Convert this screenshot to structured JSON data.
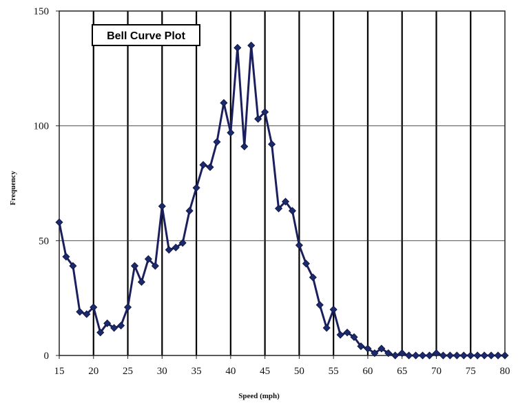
{
  "chart_data": {
    "type": "line",
    "title": "Bell Curve Plot",
    "xlabel": "Speed (mph)",
    "ylabel": "Frequency",
    "xlim": [
      15,
      80
    ],
    "ylim": [
      0,
      150
    ],
    "xticks": [
      15,
      20,
      25,
      30,
      35,
      40,
      45,
      50,
      55,
      60,
      65,
      70,
      75,
      80
    ],
    "yticks": [
      0,
      50,
      100,
      150
    ],
    "grid": true,
    "colors": {
      "line": "#1b1f5e",
      "marker": "#1b2a6b"
    },
    "series": [
      {
        "x": [
          15,
          16,
          17,
          18,
          19,
          20,
          21,
          22,
          23,
          24,
          25,
          26,
          27,
          28,
          29,
          30,
          31,
          32,
          33,
          34,
          35,
          36,
          37,
          38,
          39,
          40,
          41,
          42,
          43,
          44,
          45,
          46,
          47,
          48,
          49,
          50,
          51,
          52,
          53,
          54,
          55,
          56,
          57,
          58,
          59,
          60,
          61,
          62,
          63,
          64,
          65,
          66,
          67,
          68,
          69,
          70,
          71,
          72,
          73,
          74,
          75,
          76,
          77,
          78,
          79,
          80
        ],
        "y": [
          58,
          43,
          39,
          19,
          18,
          21,
          10,
          14,
          12,
          13,
          21,
          39,
          32,
          42,
          39,
          65,
          46,
          47,
          49,
          63,
          73,
          83,
          82,
          93,
          110,
          97,
          134,
          91,
          135,
          103,
          106,
          92,
          64,
          67,
          63,
          48,
          40,
          34,
          22,
          12,
          20,
          9,
          10,
          8,
          4,
          3,
          1,
          3,
          1,
          0,
          1,
          0,
          0,
          0,
          0,
          1,
          0,
          0,
          0,
          0,
          0,
          0,
          0,
          0,
          0,
          0
        ]
      }
    ]
  }
}
